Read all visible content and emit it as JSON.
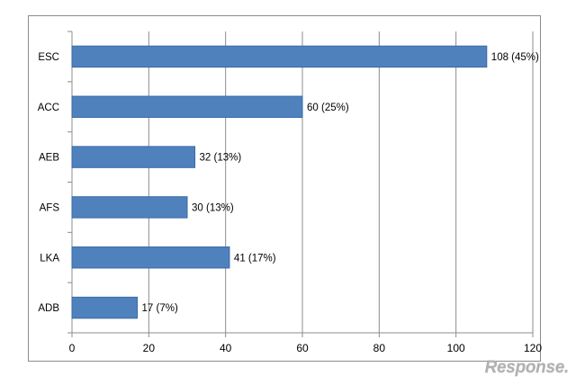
{
  "chart_data": {
    "type": "bar",
    "orientation": "horizontal",
    "categories": [
      "ESC",
      "ACC",
      "AEB",
      "AFS",
      "LKA",
      "ADB"
    ],
    "values": [
      108,
      60,
      32,
      30,
      41,
      17
    ],
    "data_labels": [
      "108 (45%)",
      "60 (25%)",
      "32 (13%)",
      "30 (13%)",
      "41 (17%)",
      "17 (7%)"
    ],
    "xlim": [
      0,
      120
    ],
    "x_ticks": [
      0,
      20,
      40,
      60,
      80,
      100,
      120
    ],
    "grid": "vertical",
    "legend": "none",
    "bar_color": "#4f81bd",
    "title": "",
    "xlabel": "",
    "ylabel": ""
  },
  "watermark": {
    "text": "Response."
  }
}
